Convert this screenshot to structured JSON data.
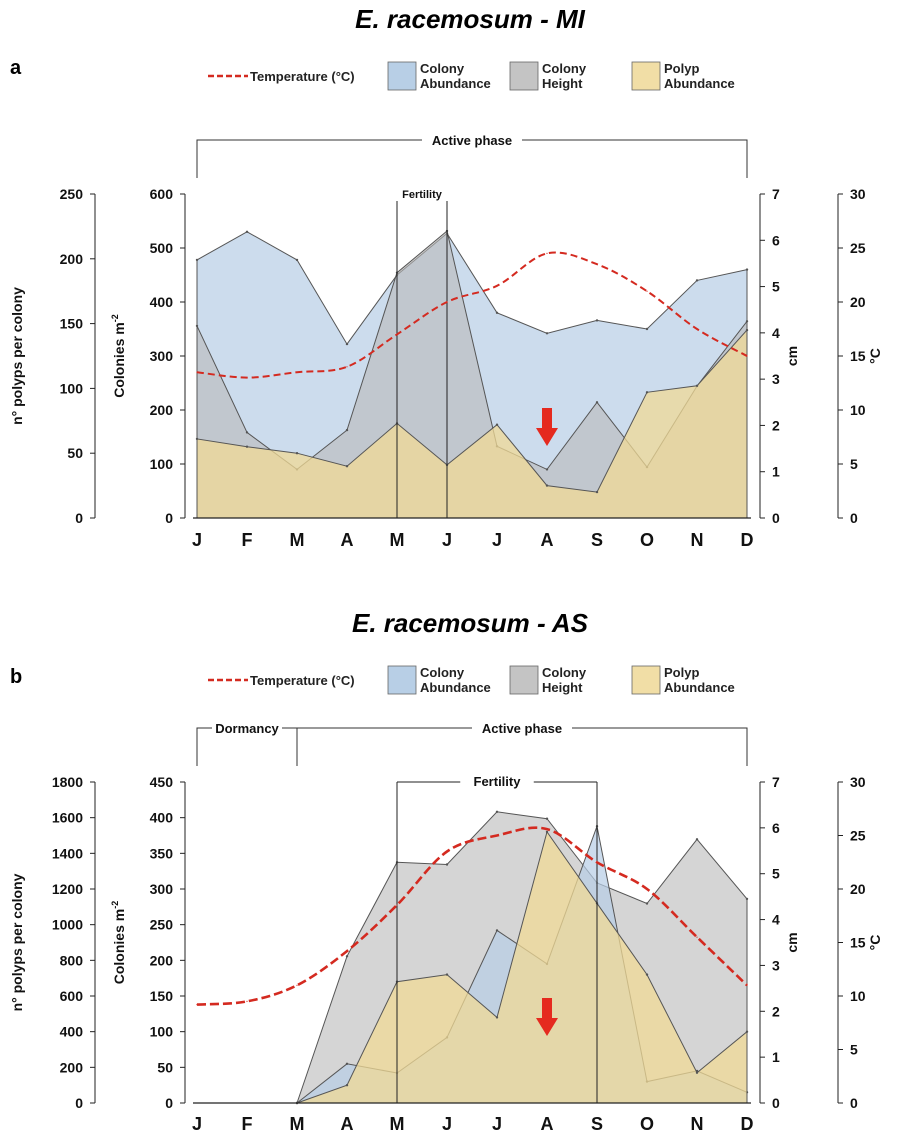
{
  "chart_data": [
    {
      "panel": "a",
      "type": "area",
      "title": "E. racemosum - MI",
      "categories": [
        "J",
        "F",
        "M",
        "A",
        "M",
        "J",
        "J",
        "A",
        "S",
        "O",
        "N",
        "D"
      ],
      "legend": [
        {
          "label": "Temperature (°C)",
          "color": "#d42a20"
        },
        {
          "label": "Colony Abundance",
          "color": "#b8cfe6"
        },
        {
          "label": "Colony Height",
          "color": "#c4c4c4"
        },
        {
          "label": "Polyp Abundance",
          "color": "#f1dea6"
        }
      ],
      "axes": {
        "polyps": {
          "label": "n° polyps per colony",
          "ylim": [
            0,
            250
          ],
          "ticks": [
            0,
            50,
            100,
            150,
            200,
            250
          ]
        },
        "colonies": {
          "label": "Colonies m⁻²",
          "ylim": [
            0,
            600
          ],
          "ticks": [
            0,
            100,
            200,
            300,
            400,
            500,
            600
          ]
        },
        "cm": {
          "label": "cm",
          "ylim": [
            0,
            7
          ],
          "ticks": [
            0,
            1,
            2,
            3,
            4,
            5,
            6,
            7
          ]
        },
        "temp": {
          "label": "°C",
          "ylim": [
            0,
            30
          ],
          "ticks": [
            0,
            5,
            10,
            15,
            20,
            25,
            30
          ]
        }
      },
      "phases": [
        {
          "label": "Active phase",
          "from": 0,
          "to": 11
        }
      ],
      "fertility": {
        "label": "Fertility",
        "from": 4,
        "to": 5
      },
      "arrow_month": 7,
      "series": [
        {
          "name": "Colony Abundance",
          "axis": "colonies",
          "values": [
            478,
            530,
            478,
            322,
            450,
            527,
            380,
            342,
            366,
            350,
            440,
            460
          ]
        },
        {
          "name": "Colony Height",
          "axis": "cm",
          "values": [
            4.15,
            1.85,
            1.05,
            1.9,
            5.3,
            6.2,
            1.55,
            1.05,
            2.5,
            1.1,
            2.85,
            4.25
          ]
        },
        {
          "name": "Polyp Abundance",
          "axis": "polyps",
          "values": [
            61,
            55,
            50,
            40,
            73,
            41,
            72,
            25,
            20,
            97,
            102,
            145
          ]
        },
        {
          "name": "Temperature (°C)",
          "axis": "temp",
          "values": [
            13.5,
            13.0,
            13.5,
            14.0,
            17.0,
            20.0,
            21.5,
            24.5,
            23.5,
            21.0,
            17.5,
            15.0
          ]
        }
      ]
    },
    {
      "panel": "b",
      "type": "area",
      "title": "E. racemosum - AS",
      "categories": [
        "J",
        "F",
        "M",
        "A",
        "M",
        "J",
        "J",
        "A",
        "S",
        "O",
        "N",
        "D"
      ],
      "legend": [
        {
          "label": "Temperature (°C)",
          "color": "#d42a20"
        },
        {
          "label": "Colony Abundance",
          "color": "#b8cfe6"
        },
        {
          "label": "Colony Height",
          "color": "#c4c4c4"
        },
        {
          "label": "Polyp Abundance",
          "color": "#f1dea6"
        }
      ],
      "axes": {
        "polyps": {
          "label": "n° polyps per colony",
          "ylim": [
            0,
            1800
          ],
          "ticks": [
            0,
            200,
            400,
            600,
            800,
            1000,
            1200,
            1400,
            1600,
            1800
          ]
        },
        "colonies": {
          "label": "Colonies m⁻²",
          "ylim": [
            0,
            450
          ],
          "ticks": [
            0,
            50,
            100,
            150,
            200,
            250,
            300,
            350,
            400,
            450
          ]
        },
        "cm": {
          "label": "cm",
          "ylim": [
            0,
            7
          ],
          "ticks": [
            0,
            1,
            2,
            3,
            4,
            5,
            6,
            7
          ]
        },
        "temp": {
          "label": "°C",
          "ylim": [
            0,
            30
          ],
          "ticks": [
            0,
            5,
            10,
            15,
            20,
            25,
            30
          ]
        }
      },
      "phases": [
        {
          "label": "Dormancy",
          "from": 0,
          "to": 2
        },
        {
          "label": "Active phase",
          "from": 2,
          "to": 11
        }
      ],
      "fertility": {
        "label": "Fertility",
        "from": 4,
        "to": 8
      },
      "arrow_month": 7,
      "series": [
        {
          "name": "Colony Height",
          "axis": "cm",
          "values": [
            null,
            null,
            0,
            3.2,
            5.25,
            5.2,
            6.35,
            6.2,
            4.8,
            4.35,
            5.75,
            4.45
          ]
        },
        {
          "name": "Colony Abundance",
          "axis": "colonies",
          "values": [
            null,
            null,
            0,
            55,
            42,
            92,
            242,
            195,
            388,
            30,
            45,
            15
          ]
        },
        {
          "name": "Polyp Abundance",
          "axis": "polyps",
          "values": [
            null,
            null,
            0,
            100,
            680,
            720,
            480,
            1520,
            1120,
            720,
            170,
            400
          ]
        },
        {
          "name": "Temperature (°C)",
          "axis": "temp",
          "values": [
            9.2,
            9.5,
            11.0,
            14.2,
            18.5,
            23.5,
            25.0,
            25.6,
            22.5,
            20.0,
            15.5,
            11.0
          ]
        }
      ]
    }
  ]
}
